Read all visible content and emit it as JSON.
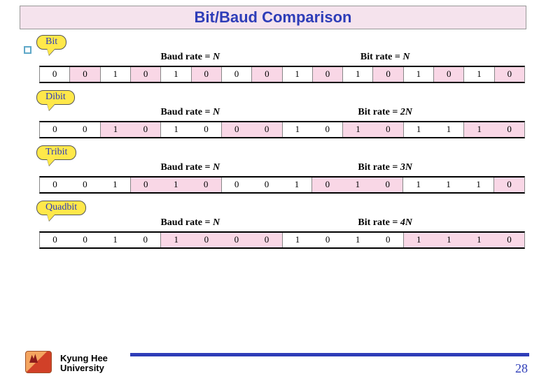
{
  "title": "Bit/Baud Comparison",
  "colors": {
    "title_bg": "#f5e3ed",
    "title_fg": "#2e3db8",
    "callout_bg": "#ffe84a",
    "shade_bg": "#f9d7e6",
    "accent": "#2e3db8"
  },
  "baud_label_prefix": "Baud rate = ",
  "bit_label_prefix": "Bit rate = ",
  "sections": [
    {
      "name": "Bit",
      "group_size": 1,
      "baud_rate": "N",
      "bit_rate": "N",
      "bits": [
        "0",
        "0",
        "1",
        "0",
        "1",
        "0",
        "0",
        "0",
        "1",
        "0",
        "1",
        "0",
        "1",
        "0",
        "1",
        "0"
      ]
    },
    {
      "name": "Dibit",
      "group_size": 2,
      "baud_rate": "N",
      "bit_rate": "2N",
      "bits": [
        "0",
        "0",
        "1",
        "0",
        "1",
        "0",
        "0",
        "0",
        "1",
        "0",
        "1",
        "0",
        "1",
        "1",
        "1",
        "0"
      ]
    },
    {
      "name": "Tribit",
      "group_size": 3,
      "baud_rate": "N",
      "bit_rate": "3N",
      "bits": [
        "0",
        "0",
        "1",
        "0",
        "1",
        "0",
        "0",
        "0",
        "1",
        "0",
        "1",
        "0",
        "1",
        "1",
        "1",
        "0"
      ]
    },
    {
      "name": "Quadbit",
      "group_size": 4,
      "baud_rate": "N",
      "bit_rate": "4N",
      "bits": [
        "0",
        "0",
        "1",
        "0",
        "1",
        "0",
        "0",
        "0",
        "1",
        "0",
        "1",
        "0",
        "1",
        "1",
        "1",
        "0"
      ]
    }
  ],
  "footer": {
    "university_line1": "Kyung Hee",
    "university_line2": "University",
    "page_number": "28"
  }
}
